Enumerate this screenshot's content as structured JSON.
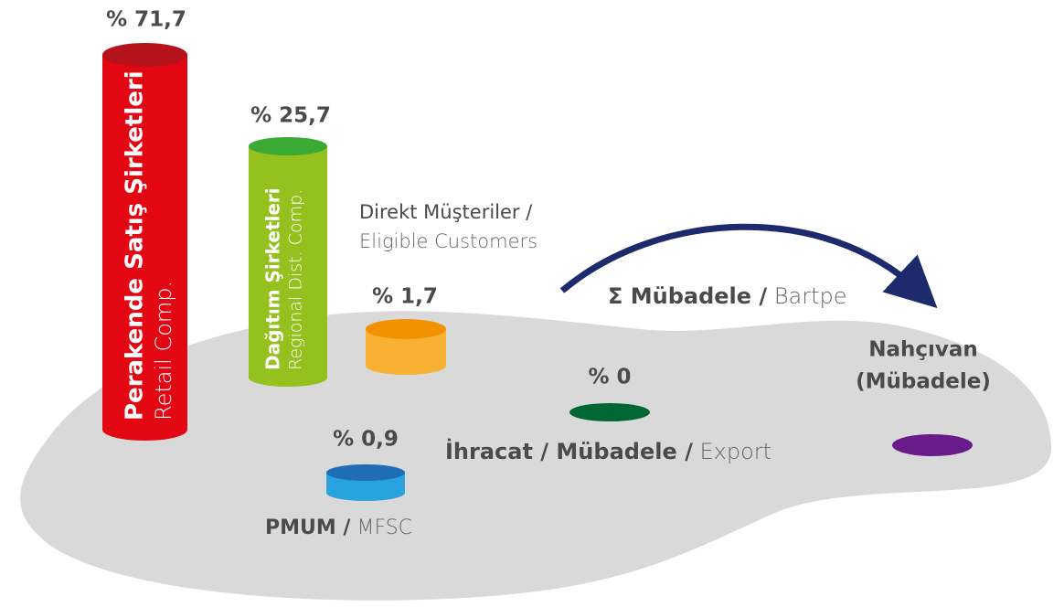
{
  "items": [
    {
      "value_label": "% 71,7",
      "name": "Perakende Satış Şirketleri",
      "name_en": "Retail Comp."
    },
    {
      "value_label": "% 25,7",
      "name": "Dağıtım Şirketleri",
      "name_en": "Regional Dist. Comp."
    },
    {
      "value_label": "% 1,7",
      "name": "Direkt Müşteriler /",
      "name_en": "Eligible Customers"
    },
    {
      "value_label": "% 0,9",
      "name": "PMUM /",
      "name_en": "MFSC"
    },
    {
      "value_label": "% 0",
      "name": "İhracat / Mübadele /",
      "name_en": "Export"
    }
  ],
  "flow": {
    "name": "Σ Mübadele /",
    "name_en": "Bartpe"
  },
  "destination": {
    "lines": [
      "Nahçıvan",
      "(Mübadele)"
    ]
  }
}
